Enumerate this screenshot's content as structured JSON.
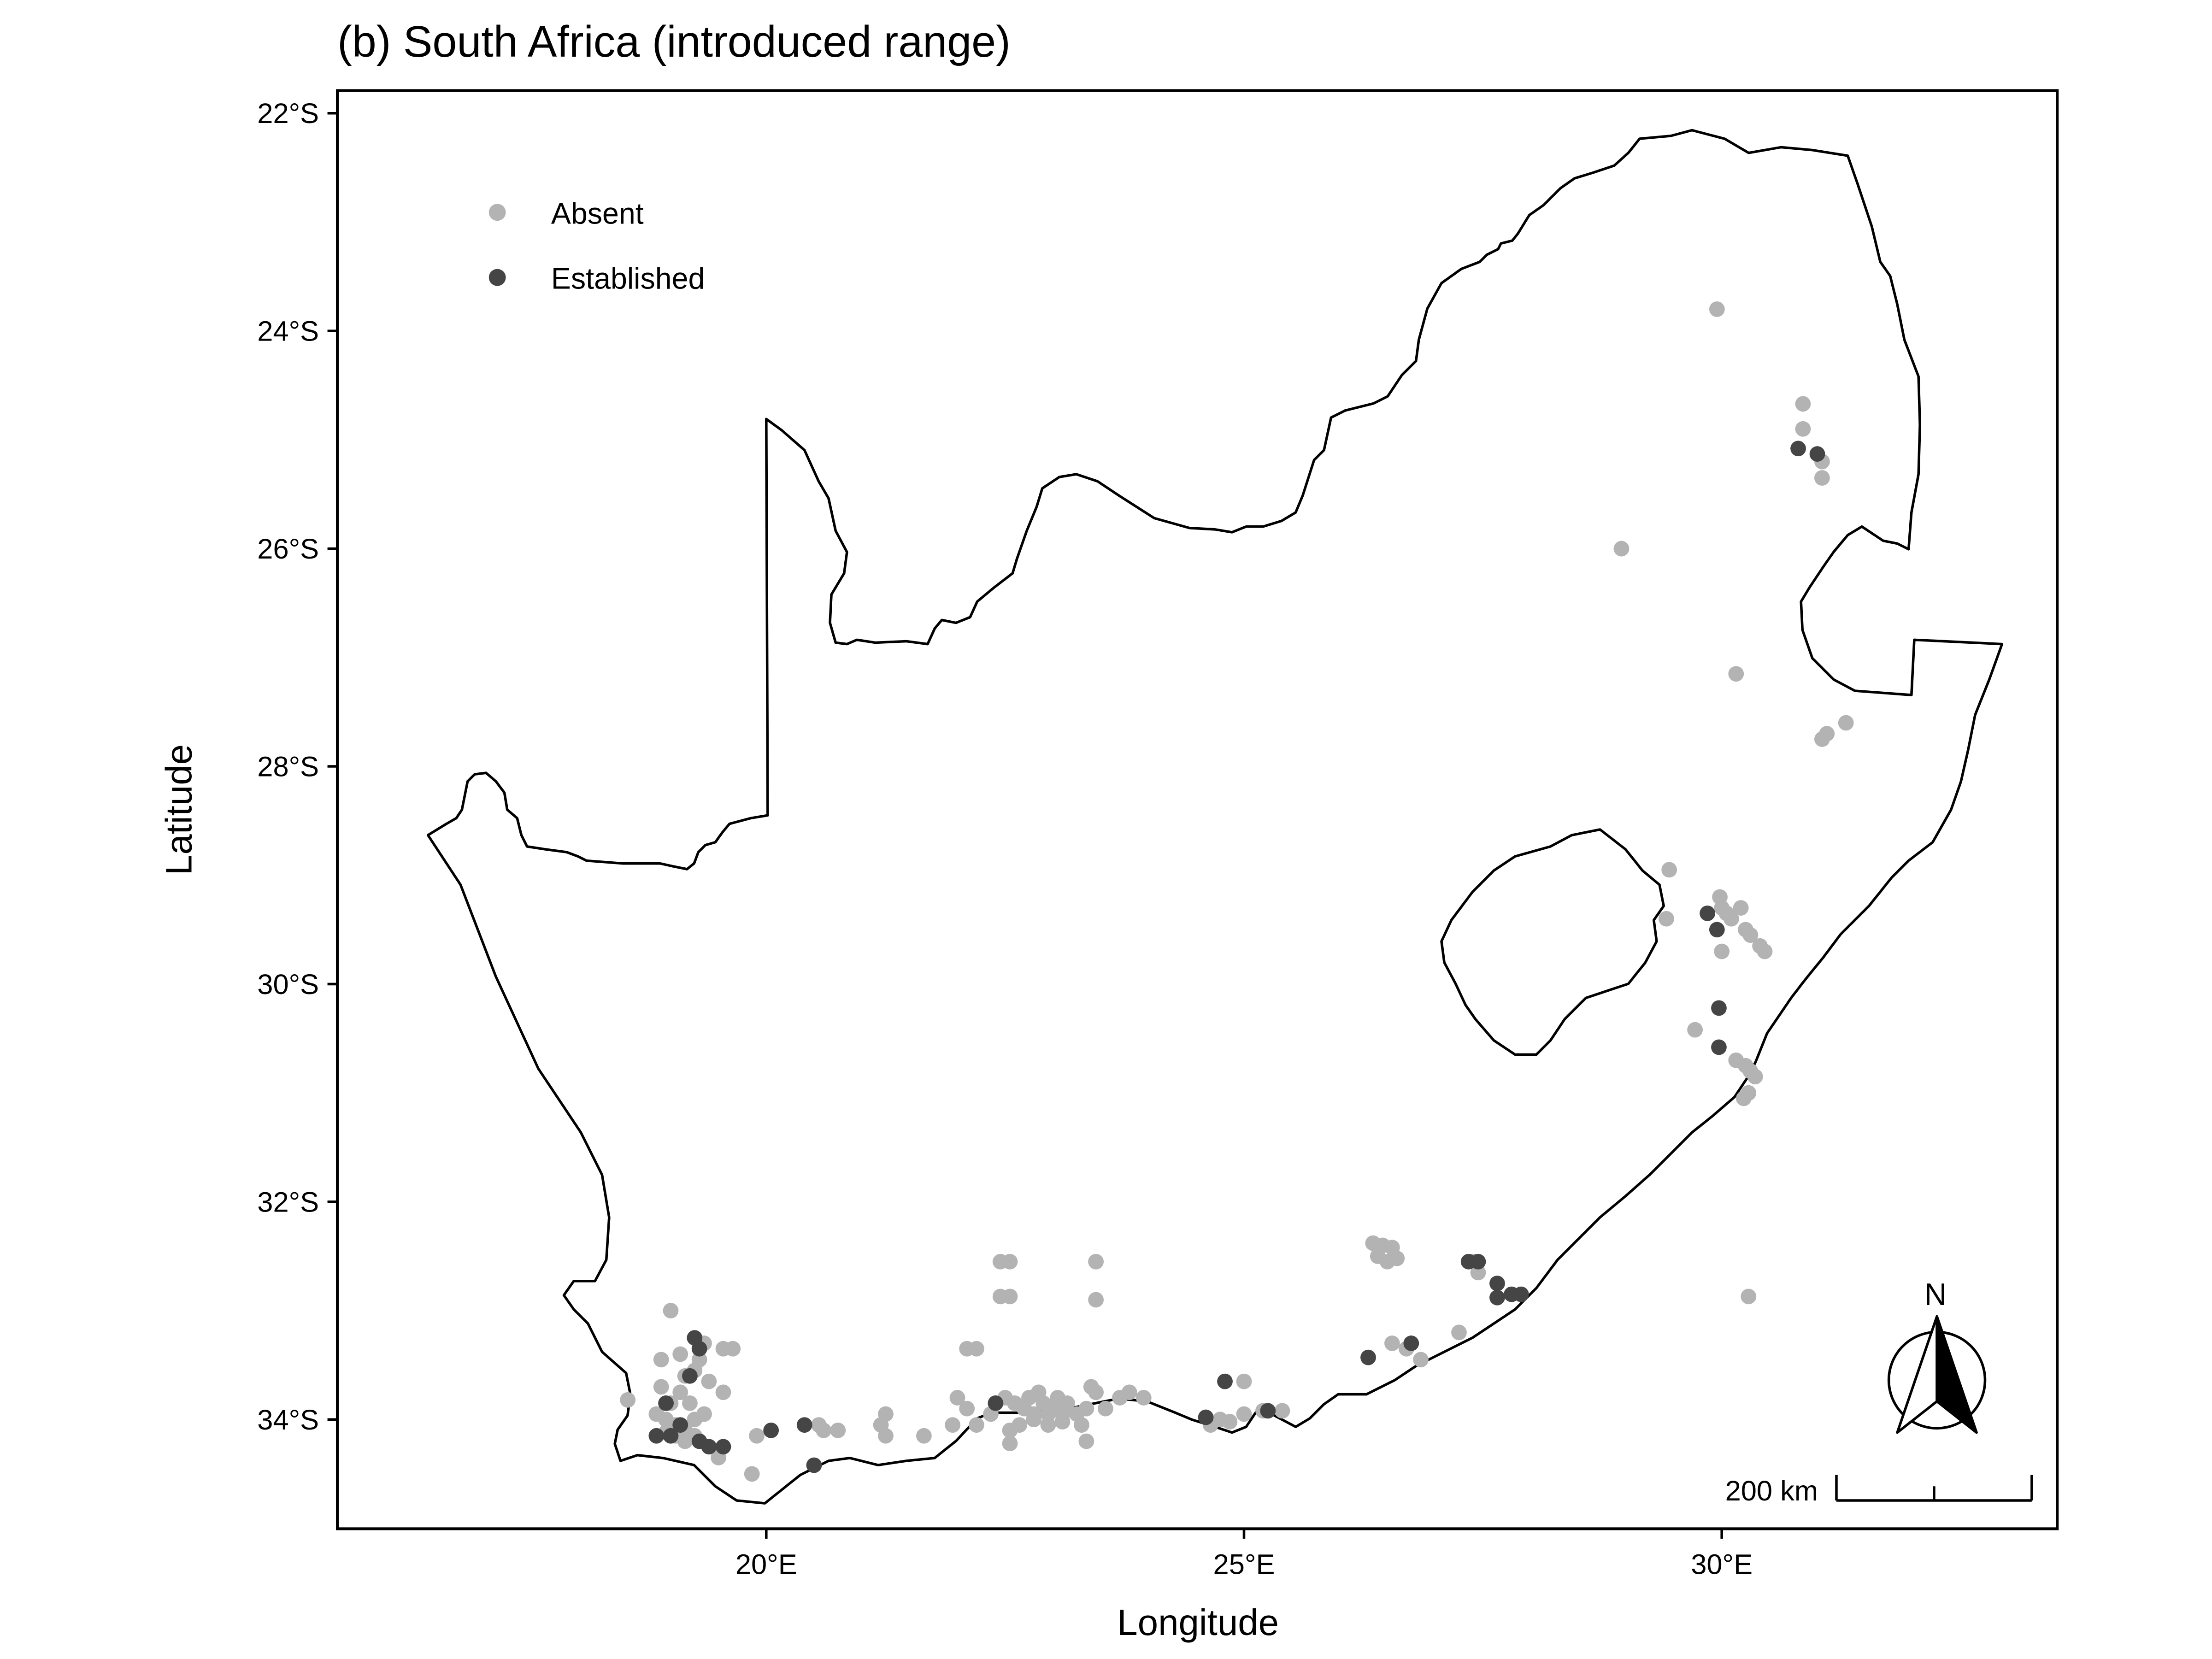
{
  "title": "(b) South Africa (introduced range)",
  "axes": {
    "x_label": "Longitude",
    "y_label": "Latitude",
    "x_ticks": [
      {
        "value": 20,
        "label": "20°E"
      },
      {
        "value": 25,
        "label": "25°E"
      },
      {
        "value": 30,
        "label": "30°E"
      }
    ],
    "y_ticks": [
      {
        "value": -22,
        "label": "22°S"
      },
      {
        "value": -24,
        "label": "24°S"
      },
      {
        "value": -26,
        "label": "26°S"
      },
      {
        "value": -28,
        "label": "28°S"
      },
      {
        "value": -30,
        "label": "30°S"
      },
      {
        "value": -32,
        "label": "32°S"
      },
      {
        "value": -34,
        "label": "34°S"
      }
    ],
    "x_range": [
      15.5,
      33.5
    ],
    "y_range": [
      -35.0,
      -21.8
    ]
  },
  "legend": {
    "position": "top-left",
    "items": [
      {
        "label": "Absent",
        "color": "#b3b3b3"
      },
      {
        "label": "Established",
        "color": "#454545"
      }
    ]
  },
  "north_arrow": {
    "label": "N"
  },
  "scale_bar": {
    "label": "200 km"
  },
  "colors": {
    "absent": "#b3b3b3",
    "established": "#454545",
    "outline": "#000000"
  },
  "chart_data": {
    "type": "scatter",
    "title": "(b) South Africa (introduced range)",
    "xlabel": "Longitude",
    "ylabel": "Latitude",
    "xlim": [
      15.5,
      33.5
    ],
    "ylim": [
      -35.0,
      -21.8
    ],
    "grid": false,
    "legend_position": "top-left",
    "series": [
      {
        "name": "Absent",
        "color": "#b3b3b3",
        "points": [
          [
            29.95,
            -23.8
          ],
          [
            30.85,
            -24.67
          ],
          [
            30.85,
            -24.9
          ],
          [
            31.05,
            -25.2
          ],
          [
            31.05,
            -25.35
          ],
          [
            28.95,
            -26.0
          ],
          [
            30.15,
            -27.15
          ],
          [
            31.05,
            -27.75
          ],
          [
            31.1,
            -27.7
          ],
          [
            31.3,
            -27.6
          ],
          [
            29.45,
            -28.95
          ],
          [
            29.42,
            -29.4
          ],
          [
            29.98,
            -29.2
          ],
          [
            30.0,
            -29.3
          ],
          [
            30.05,
            -29.35
          ],
          [
            30.1,
            -29.4
          ],
          [
            30.2,
            -29.3
          ],
          [
            30.25,
            -29.5
          ],
          [
            30.3,
            -29.55
          ],
          [
            30.4,
            -29.65
          ],
          [
            30.45,
            -29.7
          ],
          [
            30.0,
            -29.7
          ],
          [
            29.72,
            -30.42
          ],
          [
            30.15,
            -30.7
          ],
          [
            30.25,
            -30.75
          ],
          [
            30.3,
            -30.8
          ],
          [
            30.35,
            -30.85
          ],
          [
            30.28,
            -31.0
          ],
          [
            30.23,
            -31.05
          ],
          [
            30.28,
            -32.87
          ],
          [
            26.35,
            -32.38
          ],
          [
            26.45,
            -32.4
          ],
          [
            26.55,
            -32.42
          ],
          [
            26.4,
            -32.5
          ],
          [
            26.5,
            -32.55
          ],
          [
            26.6,
            -32.52
          ],
          [
            26.55,
            -33.3
          ],
          [
            26.7,
            -33.35
          ],
          [
            26.85,
            -33.45
          ],
          [
            27.25,
            -33.2
          ],
          [
            27.45,
            -32.65
          ],
          [
            27.4,
            -32.55
          ],
          [
            25.0,
            -33.95
          ],
          [
            24.75,
            -34.0
          ],
          [
            24.85,
            -34.02
          ],
          [
            24.65,
            -34.05
          ],
          [
            25.2,
            -33.92
          ],
          [
            25.4,
            -33.92
          ],
          [
            25.0,
            -33.65
          ],
          [
            22.55,
            -32.55
          ],
          [
            22.45,
            -32.55
          ],
          [
            23.45,
            -32.55
          ],
          [
            22.45,
            -32.87
          ],
          [
            22.55,
            -32.87
          ],
          [
            23.45,
            -32.9
          ],
          [
            22.1,
            -33.35
          ],
          [
            22.2,
            -33.35
          ],
          [
            22.0,
            -33.8
          ],
          [
            22.1,
            -33.9
          ],
          [
            21.95,
            -34.05
          ],
          [
            22.2,
            -34.05
          ],
          [
            22.35,
            -33.95
          ],
          [
            22.4,
            -33.85
          ],
          [
            22.5,
            -33.8
          ],
          [
            22.6,
            -33.85
          ],
          [
            22.7,
            -33.9
          ],
          [
            22.75,
            -33.8
          ],
          [
            22.85,
            -33.75
          ],
          [
            22.9,
            -33.85
          ],
          [
            23.0,
            -33.9
          ],
          [
            23.05,
            -33.8
          ],
          [
            23.15,
            -33.85
          ],
          [
            23.25,
            -33.95
          ],
          [
            23.35,
            -33.9
          ],
          [
            23.45,
            -33.75
          ],
          [
            23.55,
            -33.9
          ],
          [
            23.7,
            -33.8
          ],
          [
            23.8,
            -33.75
          ],
          [
            23.95,
            -33.8
          ],
          [
            22.55,
            -34.1
          ],
          [
            22.65,
            -34.05
          ],
          [
            22.8,
            -34.0
          ],
          [
            22.95,
            -34.05
          ],
          [
            23.1,
            -34.02
          ],
          [
            23.3,
            -34.05
          ],
          [
            23.35,
            -34.2
          ],
          [
            22.55,
            -34.22
          ],
          [
            23.4,
            -33.7
          ],
          [
            23.1,
            -33.95
          ],
          [
            22.8,
            -33.95
          ],
          [
            22.95,
            -33.95
          ],
          [
            21.25,
            -33.95
          ],
          [
            21.2,
            -34.05
          ],
          [
            21.25,
            -34.15
          ],
          [
            21.65,
            -34.15
          ],
          [
            20.55,
            -34.05
          ],
          [
            20.75,
            -34.1
          ],
          [
            20.6,
            -34.1
          ],
          [
            19.9,
            -34.15
          ],
          [
            19.85,
            -34.5
          ],
          [
            18.55,
            -33.82
          ],
          [
            18.9,
            -33.45
          ],
          [
            19.0,
            -33.0
          ],
          [
            19.1,
            -33.4
          ],
          [
            19.15,
            -33.6
          ],
          [
            19.25,
            -33.55
          ],
          [
            19.3,
            -33.45
          ],
          [
            19.35,
            -33.3
          ],
          [
            19.4,
            -33.65
          ],
          [
            19.55,
            -33.35
          ],
          [
            19.65,
            -33.35
          ],
          [
            19.0,
            -33.85
          ],
          [
            18.85,
            -33.95
          ],
          [
            18.95,
            -34.0
          ],
          [
            19.05,
            -34.05
          ],
          [
            19.15,
            -34.1
          ],
          [
            19.25,
            -34.0
          ],
          [
            19.35,
            -33.95
          ],
          [
            19.05,
            -34.15
          ],
          [
            19.15,
            -34.2
          ],
          [
            19.25,
            -34.15
          ],
          [
            18.95,
            -34.12
          ],
          [
            19.55,
            -33.75
          ],
          [
            19.5,
            -34.35
          ],
          [
            18.9,
            -33.7
          ],
          [
            19.1,
            -33.75
          ],
          [
            19.2,
            -33.85
          ]
        ]
      },
      {
        "name": "Established",
        "color": "#454545",
        "points": [
          [
            30.8,
            -25.08
          ],
          [
            31.0,
            -25.13
          ],
          [
            29.85,
            -29.35
          ],
          [
            29.95,
            -29.5
          ],
          [
            29.97,
            -30.22
          ],
          [
            29.97,
            -30.58
          ],
          [
            27.35,
            -32.55
          ],
          [
            27.45,
            -32.55
          ],
          [
            27.65,
            -32.75
          ],
          [
            27.8,
            -32.85
          ],
          [
            27.9,
            -32.85
          ],
          [
            27.65,
            -32.88
          ],
          [
            26.75,
            -33.3
          ],
          [
            26.3,
            -33.43
          ],
          [
            24.8,
            -33.65
          ],
          [
            24.6,
            -33.98
          ],
          [
            25.25,
            -33.92
          ],
          [
            22.4,
            -33.85
          ],
          [
            20.05,
            -34.1
          ],
          [
            20.5,
            -34.42
          ],
          [
            20.4,
            -34.05
          ],
          [
            19.25,
            -33.25
          ],
          [
            19.3,
            -33.35
          ],
          [
            19.2,
            -33.6
          ],
          [
            18.95,
            -33.85
          ],
          [
            19.0,
            -34.15
          ],
          [
            19.4,
            -34.25
          ],
          [
            19.55,
            -34.25
          ],
          [
            19.1,
            -34.05
          ],
          [
            18.85,
            -34.15
          ],
          [
            19.3,
            -34.2
          ]
        ]
      }
    ]
  }
}
